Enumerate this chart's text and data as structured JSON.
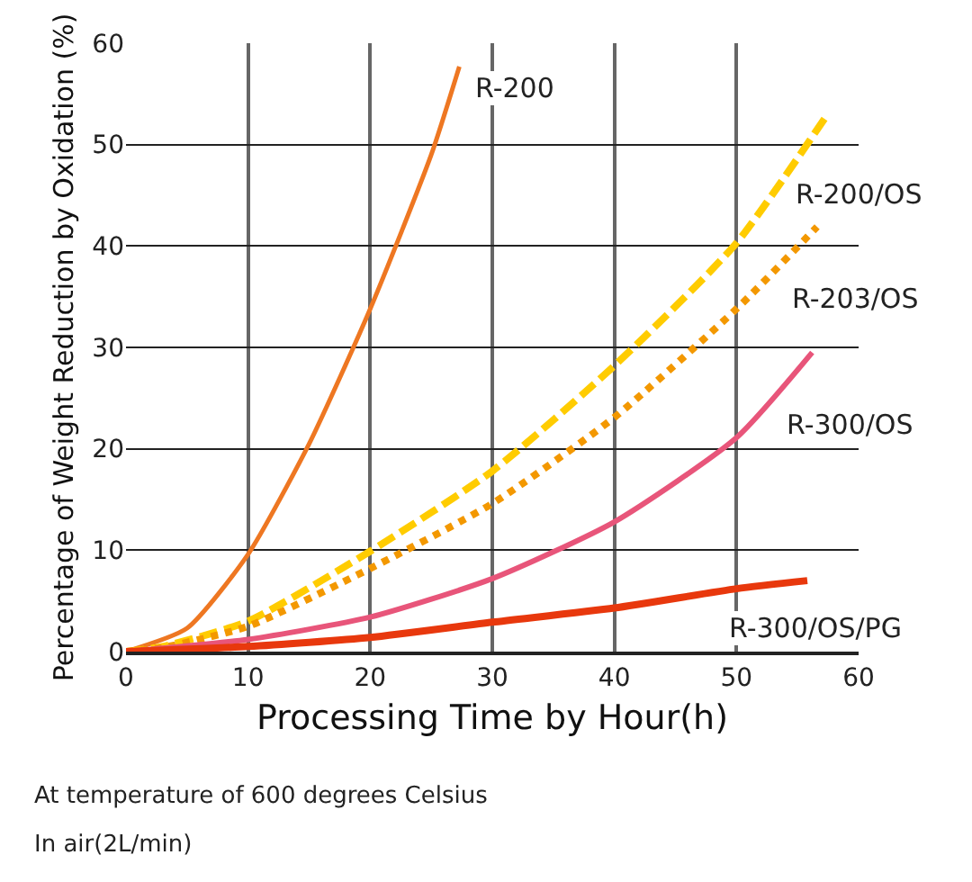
{
  "chart_data": {
    "type": "line",
    "xlabel": "Processing Time by Hour(h)",
    "ylabel": "Percentage of Weight Reduction by Oxidation (%)",
    "xlim": [
      0,
      60
    ],
    "xticks": [
      0,
      10,
      20,
      30,
      40,
      50,
      60
    ],
    "ylim": [
      0,
      60
    ],
    "yticks": [
      0,
      10,
      20,
      30,
      40,
      50,
      60
    ],
    "grid": true,
    "legend": false,
    "marker": "none",
    "annotations": [
      "At temperature of 600 degrees Celsius",
      "In air(2L/min)"
    ],
    "series": [
      {
        "name": "R-200",
        "color": "#ee7722",
        "line_style": "solid",
        "x": [
          0,
          5,
          10,
          15,
          20,
          25,
          27.3
        ],
        "values": [
          0,
          2.3,
          9.6,
          20.5,
          33.8,
          49,
          57.7
        ]
      },
      {
        "name": "R-200/OS",
        "color": "#ffcc00",
        "line_style": "dashed",
        "x": [
          0,
          3,
          10,
          20,
          30,
          40,
          50,
          57.4
        ],
        "values": [
          0,
          0.5,
          3.0,
          9.9,
          17.8,
          28.2,
          40.3,
          52.9
        ]
      },
      {
        "name": "R-203/OS",
        "color": "#f39800",
        "line_style": "dotted",
        "x": [
          0,
          3,
          10,
          20,
          30,
          40,
          50,
          56.6
        ],
        "values": [
          0,
          0.4,
          2.5,
          8.2,
          14.6,
          23.1,
          33.8,
          41.9
        ]
      },
      {
        "name": "R-300/OS",
        "color": "#e8557a",
        "line_style": "solid",
        "x": [
          0,
          10,
          20,
          30,
          40,
          50,
          56.2
        ],
        "values": [
          0,
          1.2,
          3.4,
          7.2,
          12.8,
          21.1,
          29.5
        ]
      },
      {
        "name": "R-300/OS/PG",
        "color": "#e8380d",
        "line_style": "solid",
        "x": [
          0,
          10,
          20,
          30,
          40,
          50,
          55.8
        ],
        "values": [
          0,
          0.5,
          1.4,
          2.9,
          4.3,
          6.2,
          7.0
        ]
      }
    ]
  }
}
